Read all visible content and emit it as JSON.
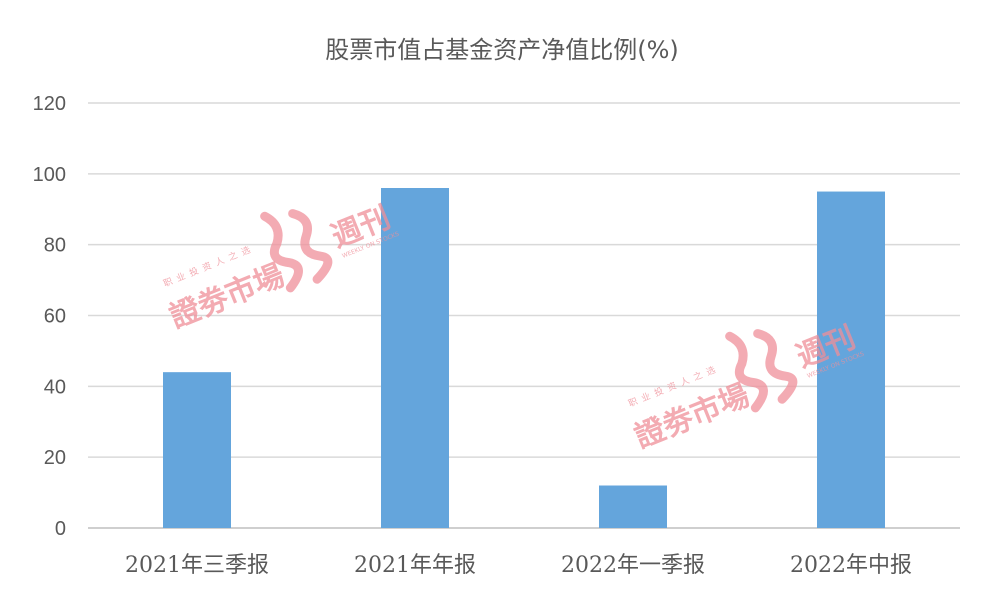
{
  "chart_data": {
    "type": "bar",
    "title": "股票市值占基金资产净值比例(%)",
    "categories": [
      "2021年三季报",
      "2021年年报",
      "2022年一季报",
      "2022年中报"
    ],
    "values": [
      44,
      96,
      12,
      95
    ],
    "ylim": [
      0,
      120
    ],
    "yticks": [
      0,
      20,
      40,
      60,
      80,
      100,
      120
    ],
    "grid": true,
    "legend": "none",
    "bar_color": "#64a5dc"
  },
  "watermark": {
    "main_text": "證劵市場",
    "weekly_text": "週刊",
    "small_text": "职业投资人之选",
    "tiny_text": "WEEKLY ON STOCKS",
    "color": "#ef8f99"
  }
}
